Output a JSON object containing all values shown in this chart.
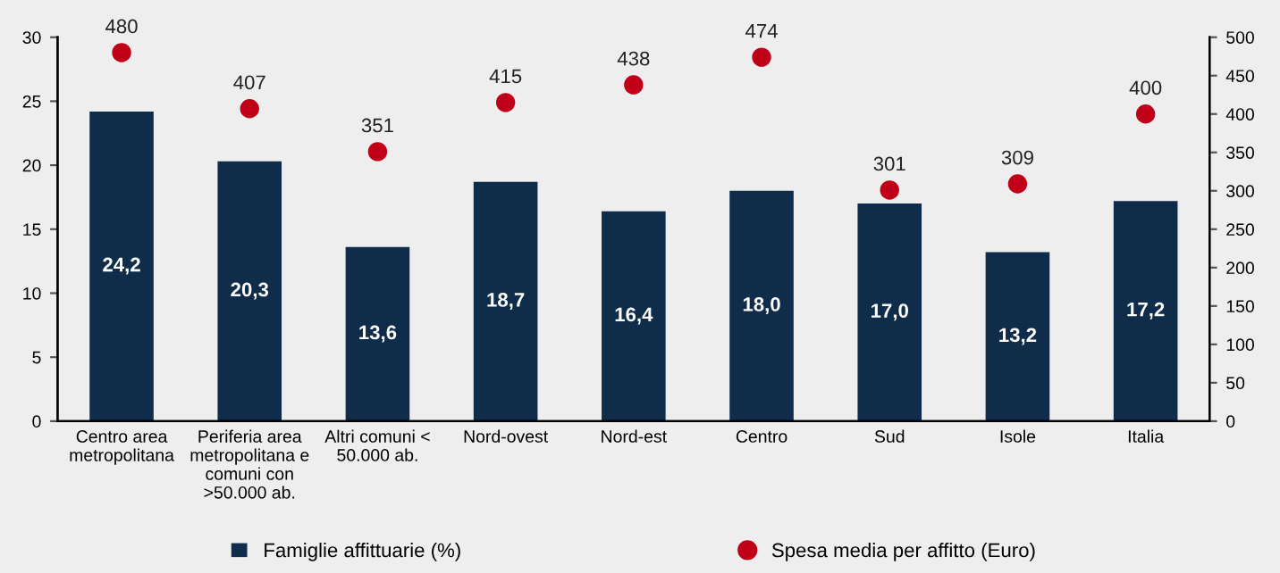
{
  "chart_data": {
    "type": "bar",
    "categories": [
      "Centro area\nmetropolitana",
      "Periferia area\nmetropolitana e\ncomuni con\n>50.000 ab.",
      "Altri comuni <\n50.000 ab.",
      "Nord-ovest",
      "Nord-est",
      "Centro",
      "Sud",
      "Isole",
      "Italia"
    ],
    "series": [
      {
        "name": "Famiglie affittuarie (%)",
        "color": "#0f2d4a",
        "values": [
          24.2,
          20.3,
          13.6,
          18.7,
          16.4,
          18.0,
          17.0,
          13.2,
          17.2
        ],
        "value_labels": [
          "24,2",
          "20,3",
          "13,6",
          "18,7",
          "16,4",
          "18,0",
          "17,0",
          "13,2",
          "17,2"
        ]
      },
      {
        "name": "Spesa media per affitto (Euro)",
        "type": "scatter",
        "axis": "y2",
        "color": "#c00018",
        "marker": "circle",
        "values": [
          480,
          407,
          351,
          415,
          438,
          474,
          301,
          309,
          400
        ],
        "data_labels": true
      }
    ],
    "ylim": [
      0,
      30
    ],
    "yticks": [
      0,
      5,
      10,
      15,
      20,
      25,
      30
    ],
    "y2lim": [
      0,
      500
    ],
    "y2ticks": [
      0,
      50,
      100,
      150,
      200,
      250,
      300,
      350,
      400,
      450,
      500
    ],
    "legend": "bottom",
    "grid": false
  }
}
